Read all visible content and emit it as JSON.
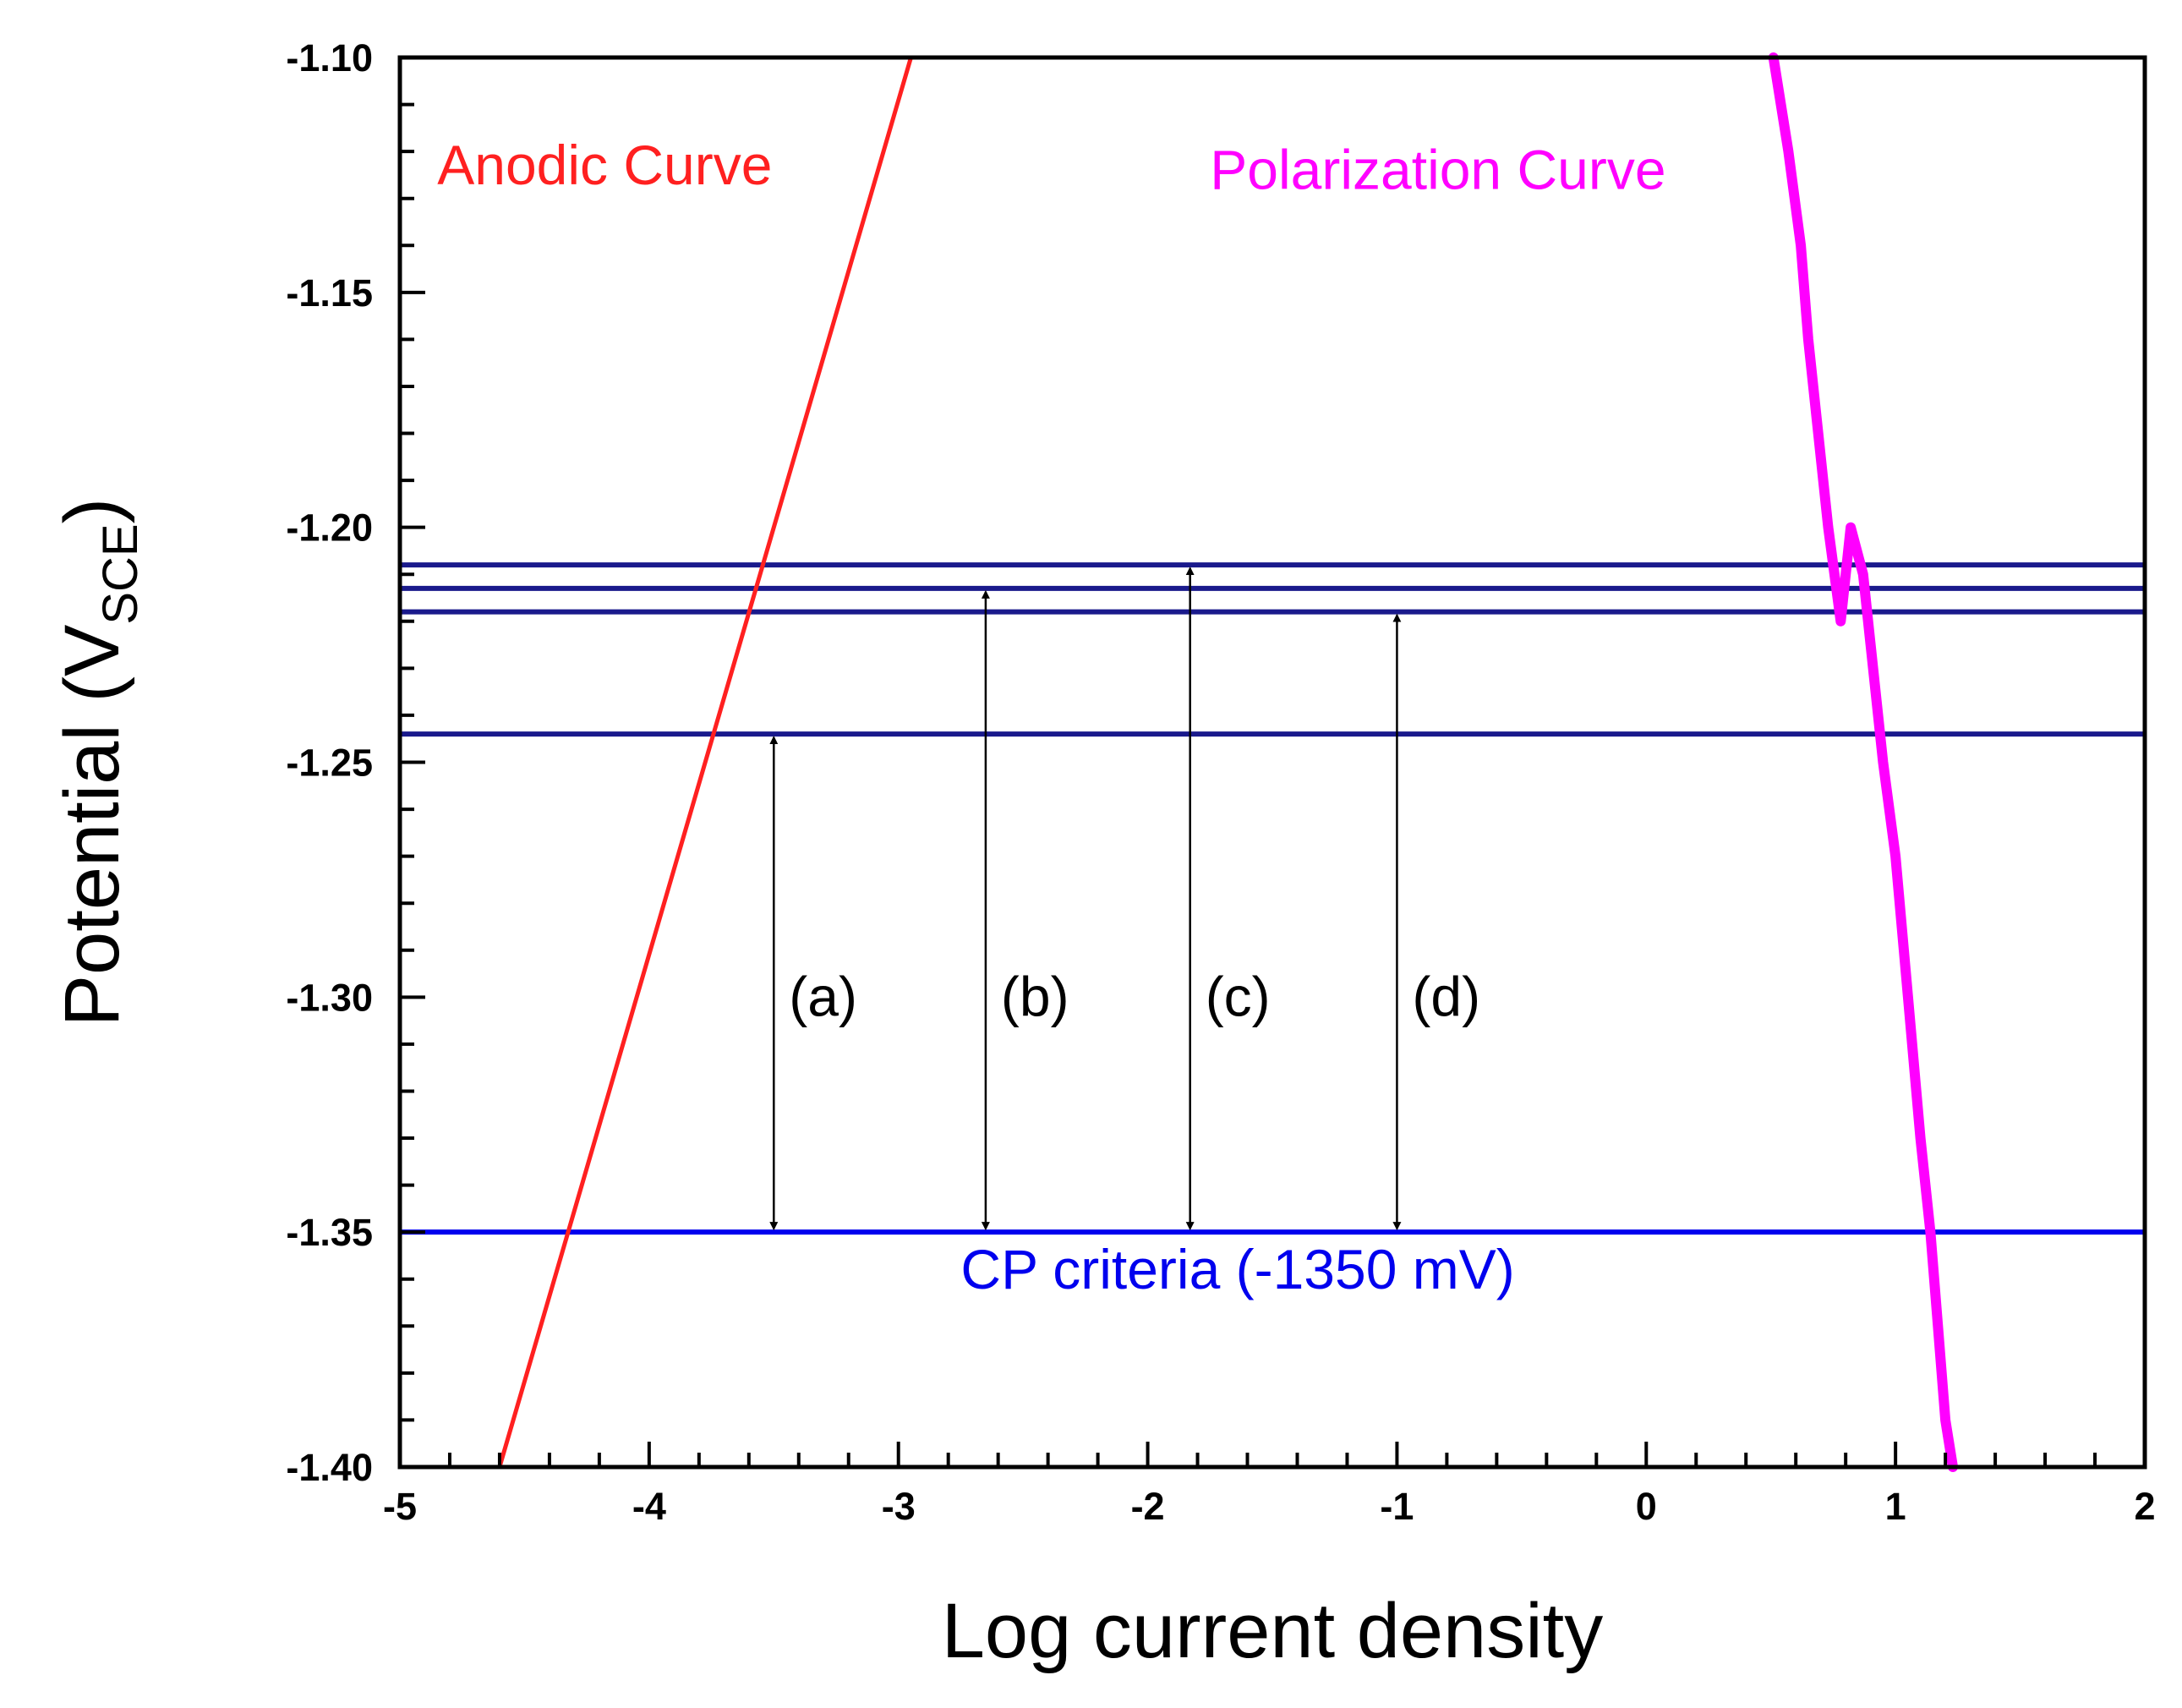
{
  "chart_data": {
    "type": "line",
    "title": "",
    "xlabel": "Log current density",
    "ylabel": "Potential (V",
    "ylabel_sub": "SCE",
    "ylabel_close": ")",
    "xlim": [
      -5,
      2
    ],
    "ylim": [
      -1.4,
      -1.1
    ],
    "x_ticks": [
      -5,
      -4,
      -3,
      -2,
      -1,
      0,
      1,
      2
    ],
    "x_tick_labels": [
      "-5",
      "-4",
      "-3",
      "-2",
      "-1",
      "0",
      "1",
      "2"
    ],
    "y_ticks": [
      -1.4,
      -1.35,
      -1.3,
      -1.25,
      -1.2,
      -1.15,
      -1.1
    ],
    "y_tick_labels": [
      "-1.40",
      "-1.35",
      "-1.30",
      "-1.25",
      "-1.20",
      "-1.15",
      "-1.10"
    ],
    "grid": false,
    "series": [
      {
        "name": "Anodic Curve",
        "color": "#ff2020",
        "x": [
          -4.6,
          -2.95
        ],
        "y": [
          -1.4,
          -1.1
        ]
      },
      {
        "name": "Polarization Curve",
        "color": "#ff00ff",
        "x": [
          0.51,
          0.57,
          0.62,
          0.65,
          0.69,
          0.73,
          0.78,
          0.82,
          0.87,
          0.91,
          0.95,
          1.0,
          1.05,
          1.1,
          1.14,
          1.17,
          1.2,
          1.23
        ],
        "y": [
          -1.1,
          -1.12,
          -1.14,
          -1.16,
          -1.18,
          -1.2,
          -1.22,
          -1.2,
          -1.21,
          -1.23,
          -1.25,
          -1.27,
          -1.3,
          -1.33,
          -1.35,
          -1.37,
          -1.39,
          -1.4
        ]
      }
    ],
    "hlines": [
      {
        "name": "level-1",
        "y": -1.208,
        "color": "#1a1a8c"
      },
      {
        "name": "level-2",
        "y": -1.213,
        "color": "#1a1a8c"
      },
      {
        "name": "level-3",
        "y": -1.218,
        "color": "#1a1a8c"
      },
      {
        "name": "level-4",
        "y": -1.244,
        "color": "#1a1a8c"
      },
      {
        "name": "cp-criteria",
        "y": -1.35,
        "color": "#0000ee"
      }
    ],
    "arrows": [
      {
        "label": "(a)",
        "x": -3.5,
        "y_top": -1.244,
        "y_bottom": -1.35
      },
      {
        "label": "(b)",
        "x": -2.65,
        "y_top": -1.213,
        "y_bottom": -1.35
      },
      {
        "label": "(c)",
        "x": -1.83,
        "y_top": -1.208,
        "y_bottom": -1.35
      },
      {
        "label": "(d)",
        "x": -1.0,
        "y_top": -1.218,
        "y_bottom": -1.35
      }
    ],
    "annotations": [
      {
        "name": "anodic-curve-label",
        "text": "Anodic Curve",
        "x": -4.85,
        "y": -1.127,
        "color": "#ff2020"
      },
      {
        "name": "polarization-curve-label",
        "text": "Polarization Curve",
        "x": -1.75,
        "y": -1.128,
        "color": "#ff00ff"
      },
      {
        "name": "cp-criteria-label",
        "text": "CP criteria (-1350 mV)",
        "x": -2.75,
        "y": -1.362,
        "color": "#0000ee"
      }
    ]
  }
}
